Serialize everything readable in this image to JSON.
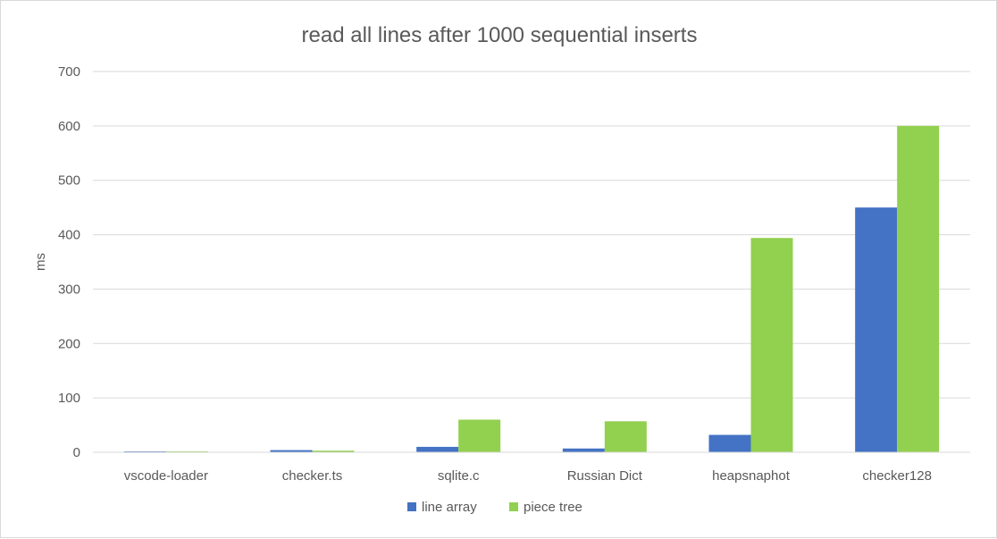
{
  "chart_data": {
    "type": "bar",
    "title": "read all lines after 1000 sequential inserts",
    "xlabel": "",
    "ylabel": "ms",
    "ylim": [
      0,
      700
    ],
    "yticks": [
      0,
      100,
      200,
      300,
      400,
      500,
      600,
      700
    ],
    "categories": [
      "vscode-loader",
      "checker.ts",
      "sqlite.c",
      "Russian Dict",
      "heapsnaphot",
      "checker128"
    ],
    "series": [
      {
        "name": "line array",
        "color": "#4472c4",
        "values": [
          1,
          4,
          10,
          7,
          32,
          450
        ]
      },
      {
        "name": "piece tree",
        "color": "#92d050",
        "values": [
          1,
          3,
          60,
          57,
          394,
          600
        ]
      }
    ],
    "grid": true,
    "legend_position": "bottom"
  }
}
